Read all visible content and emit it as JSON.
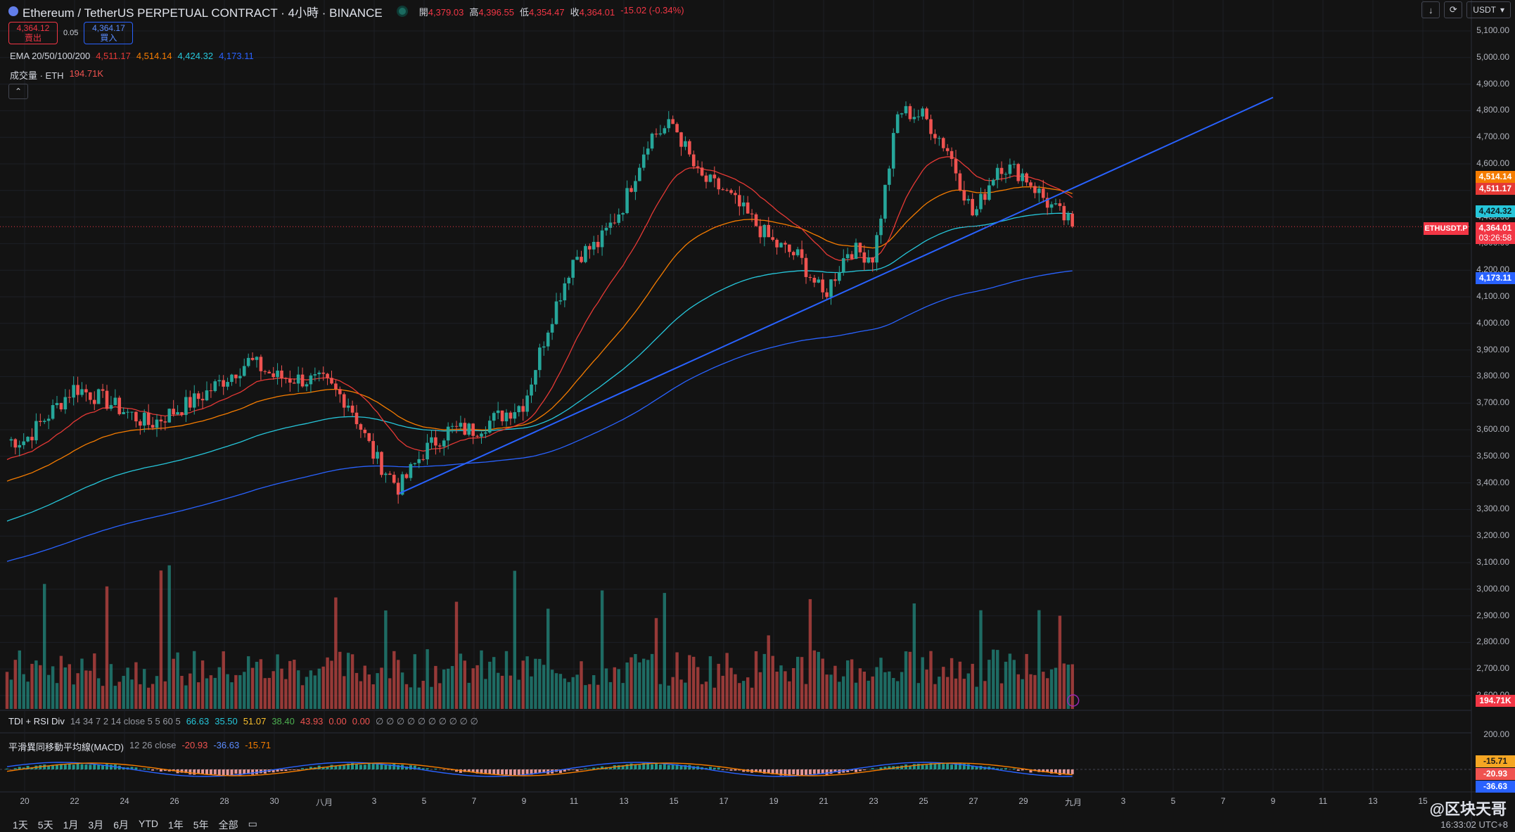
{
  "header": {
    "symbol": "Ethereum / TetherUS PERPETUAL CONTRACT · 4小時 · BINANCE",
    "open_label": "開",
    "open": "4,379.03",
    "high_label": "高",
    "high": "4,396.55",
    "low_label": "低",
    "low": "4,354.47",
    "close_label": "收",
    "close": "4,364.01",
    "change": "-15.02 (-0.34%)"
  },
  "trade": {
    "sell_price": "4,364.12",
    "sell_label": "賣出",
    "spread": "0.05",
    "buy_price": "4,364.17",
    "buy_label": "買入"
  },
  "ema": {
    "label": "EMA 20/50/100/200",
    "v20": "4,511.17",
    "v50": "4,514.14",
    "v100": "4,424.32",
    "v200": "4,173.11"
  },
  "volume": {
    "label": "成交量 · ETH",
    "value": "194.71K"
  },
  "tdi": {
    "label": "TDI + RSI Div",
    "params": "14 34 7 2 14 close 5 5 60 5",
    "values": [
      "66.63",
      "35.50",
      "51.07",
      "38.40",
      "43.93",
      "0.00",
      "0.00",
      "∅ ∅ ∅ ∅ ∅ ∅ ∅ ∅ ∅ ∅"
    ]
  },
  "macd": {
    "label": "平滑異同移動平均線(MACD)",
    "params": "12 26 close",
    "hist": "-20.93",
    "macd": "-36.63",
    "signal": "-15.71",
    "scale_top": "200.00"
  },
  "toolbar": {
    "download_icon": "↓",
    "refresh_icon": "⟳",
    "currency": "USDT"
  },
  "price_axis": [
    "5,100.00",
    "5,000.00",
    "4,900.00",
    "4,800.00",
    "4,700.00",
    "4,600.00",
    "4,500.00",
    "4,400.00",
    "4,300.00",
    "4,200.00",
    "4,100.00",
    "4,000.00",
    "3,900.00",
    "3,800.00",
    "3,700.00",
    "3,600.00",
    "3,500.00",
    "3,400.00",
    "3,300.00",
    "3,200.00",
    "3,100.00",
    "3,000.00",
    "2,900.00",
    "2,800.00",
    "2,700.00",
    "2,600.00"
  ],
  "price_labels": {
    "ema50": "4,514.14",
    "ema20": "4,511.17",
    "ema100": "4,424.32",
    "current": "4,364.01",
    "countdown": "03:26:58",
    "symbol_tag": "ETHUSDT.P",
    "ema200": "4,173.11",
    "volume": "194.71K"
  },
  "macd_labels": {
    "signal": "-15.71",
    "hist": "-20.93",
    "macd": "-36.63"
  },
  "time_axis": [
    "20",
    "22",
    "24",
    "26",
    "28",
    "30",
    "八月",
    "3",
    "5",
    "7",
    "9",
    "11",
    "13",
    "15",
    "17",
    "19",
    "21",
    "23",
    "25",
    "27",
    "29",
    "九月",
    "3",
    "5",
    "7",
    "9",
    "11",
    "13",
    "15"
  ],
  "ranges": [
    "1天",
    "5天",
    "1月",
    "3月",
    "6月",
    "YTD",
    "1年",
    "5年",
    "全部"
  ],
  "footer": {
    "time": "16:33:02 UTC+8",
    "watermark": "@区块天哥"
  },
  "colors": {
    "up": "#26a69a",
    "down": "#ef5350",
    "ema20": "#e53935",
    "ema50": "#f57c00",
    "ema100": "#26c6da",
    "ema200": "#2962ff",
    "trendline": "#2962ff",
    "background": "#131313"
  },
  "chart_data": {
    "type": "candlestick",
    "symbol": "ETHUSDT.P",
    "interval": "4h",
    "x_range": [
      "7/19",
      "9/16"
    ],
    "ylim": [
      2600,
      5150
    ],
    "anchors": [
      {
        "date": "7/19",
        "close": 3560
      },
      {
        "date": "7/21",
        "close": 3760
      },
      {
        "date": "7/22",
        "close": 3720
      },
      {
        "date": "7/24",
        "close": 3620
      },
      {
        "date": "7/26",
        "close": 3720
      },
      {
        "date": "7/28",
        "close": 3860
      },
      {
        "date": "7/29",
        "close": 3800
      },
      {
        "date": "7/31",
        "close": 3780
      },
      {
        "date": "8/1",
        "close": 3700
      },
      {
        "date": "8/2",
        "close": 3500
      },
      {
        "date": "8/3",
        "close": 3380
      },
      {
        "date": "8/4",
        "close": 3520
      },
      {
        "date": "8/5",
        "close": 3600
      },
      {
        "date": "8/6",
        "close": 3600
      },
      {
        "date": "8/8",
        "close": 3700
      },
      {
        "date": "8/9",
        "close": 4000
      },
      {
        "date": "8/10",
        "close": 4250
      },
      {
        "date": "8/11",
        "close": 4300
      },
      {
        "date": "8/12",
        "close": 4450
      },
      {
        "date": "8/13",
        "close": 4700
      },
      {
        "date": "8/14",
        "close": 4750
      },
      {
        "date": "8/15",
        "close": 4550
      },
      {
        "date": "8/16",
        "close": 4500
      },
      {
        "date": "8/17",
        "close": 4400
      },
      {
        "date": "8/18",
        "close": 4300
      },
      {
        "date": "8/19",
        "close": 4250
      },
      {
        "date": "8/20",
        "close": 4100
      },
      {
        "date": "8/21",
        "close": 4280
      },
      {
        "date": "8/22",
        "close": 4250
      },
      {
        "date": "8/23",
        "close": 4800
      },
      {
        "date": "8/24",
        "close": 4780
      },
      {
        "date": "8/25",
        "close": 4650
      },
      {
        "date": "8/26",
        "close": 4400
      },
      {
        "date": "8/27",
        "close": 4600
      },
      {
        "date": "8/28",
        "close": 4560
      },
      {
        "date": "8/29",
        "close": 4450
      },
      {
        "date": "8/30",
        "close": 4364
      }
    ],
    "trendline": [
      {
        "date": "8/3",
        "price": 3360
      },
      {
        "date": "9/7",
        "price": 4850
      }
    ],
    "current_price": 4364.01,
    "ema": {
      "20": 4511.17,
      "50": 4514.14,
      "100": 4424.32,
      "200": 4173.11
    },
    "volume_last": "194.71K"
  }
}
